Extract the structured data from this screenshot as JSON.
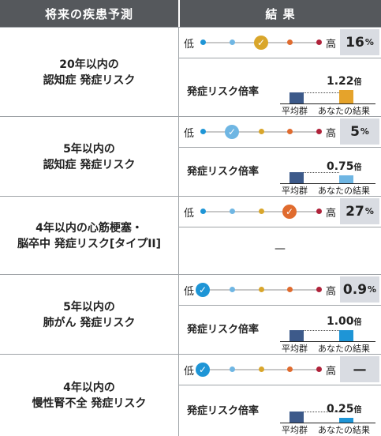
{
  "header": {
    "left": "将来の疾患予測",
    "right": "結 果"
  },
  "labels": {
    "low": "低",
    "high": "高",
    "chart_label": "発症リスク倍率",
    "avg": "平均群",
    "yours": "あなたの結果",
    "times": "倍"
  },
  "colors": {
    "header_bg": "#55585c",
    "avg_bar": "#3d5a8a",
    "orange": "#e5a32b",
    "sky": "#6fb6e3",
    "red": "#e06b2e",
    "blue": "#1e95d6",
    "dark_red": "#b0223a"
  },
  "rows": [
    {
      "line1": "20年以内の",
      "line2": "認知症 発症リスク",
      "pct_num": "16",
      "pct_unit": "%",
      "dots": [
        "blue",
        "sky",
        "check",
        "dark_red"
      ],
      "check_color": "#d9a62b",
      "check_pos": 3,
      "ratio": "1.22",
      "ratio_value": 1.22,
      "your_color": "#e5a32b",
      "has_chart": true
    },
    {
      "line1": "5年以内の",
      "line2": "認知症 発症リスク",
      "pct_num": "5",
      "pct_unit": "%",
      "check_color": "#6fb6e3",
      "check_pos": 2,
      "ratio": "0.75",
      "ratio_value": 0.75,
      "your_color": "#6fb6e3",
      "has_chart": true
    },
    {
      "line1": "4年以内の心筋梗塞・",
      "line2": "脳卒中 発症リスク[タイプII]",
      "pct_num": "27",
      "pct_unit": "%",
      "check_color": "#e06b2e",
      "check_pos": 4,
      "dash": "—",
      "has_chart": false
    },
    {
      "line1": "5年以内の",
      "line2": "肺がん 発症リスク",
      "pct_num": "0.9",
      "pct_unit": "%",
      "check_color": "#1e95d6",
      "check_pos": 1,
      "ratio": "1.00",
      "ratio_value": 1.0,
      "your_color": "#1e95d6",
      "has_chart": true
    },
    {
      "line1": "4年以内の",
      "line2": "慢性腎不全 発症リスク",
      "pct_num": "—",
      "pct_unit": "",
      "check_color": "#1e95d6",
      "check_pos": 1,
      "ratio": "0.25",
      "ratio_value": 0.25,
      "your_color": "#1e95d6",
      "has_chart": true
    }
  ]
}
